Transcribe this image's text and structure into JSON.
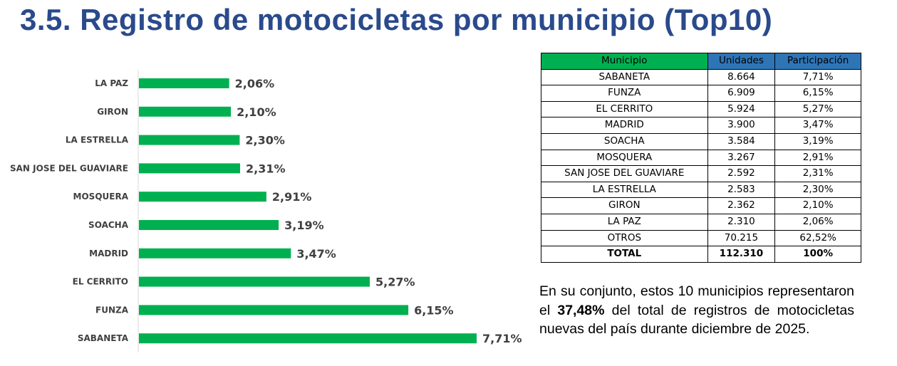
{
  "title": "3.5. Registro de motocicletas por municipio (Top10)",
  "colors": {
    "title": "#2a4a8c",
    "bar": "#00b050",
    "header_green": "#00b050",
    "header_blue": "#2e75b6"
  },
  "chart_data": {
    "type": "bar",
    "orientation": "horizontal",
    "categories": [
      "LA PAZ",
      "GIRON",
      "LA ESTRELLA",
      "SAN JOSE DEL GUAVIARE",
      "MOSQUERA",
      "SOACHA",
      "MADRID",
      "EL CERRITO",
      "FUNZA",
      "SABANETA"
    ],
    "values": [
      2.06,
      2.1,
      2.3,
      2.31,
      2.91,
      3.19,
      3.47,
      5.27,
      6.15,
      7.71
    ],
    "value_labels": [
      "2,06%",
      "2,10%",
      "2,30%",
      "2,31%",
      "2,91%",
      "3,19%",
      "3,47%",
      "5,27%",
      "6,15%",
      "7,71%"
    ],
    "title": "",
    "xlabel": "",
    "ylabel": "",
    "xlim": [
      0,
      7.71
    ],
    "grid": false,
    "legend": "none"
  },
  "table": {
    "headers": [
      "Municipio",
      "Unidades",
      "Participación"
    ],
    "rows": [
      [
        "SABANETA",
        "8.664",
        "7,71%"
      ],
      [
        "FUNZA",
        "6.909",
        "6,15%"
      ],
      [
        "EL CERRITO",
        "5.924",
        "5,27%"
      ],
      [
        "MADRID",
        "3.900",
        "3,47%"
      ],
      [
        "SOACHA",
        "3.584",
        "3,19%"
      ],
      [
        "MOSQUERA",
        "3.267",
        "2,91%"
      ],
      [
        "SAN JOSE DEL GUAVIARE",
        "2.592",
        "2,31%"
      ],
      [
        "LA ESTRELLA",
        "2.583",
        "2,30%"
      ],
      [
        "GIRON",
        "2.362",
        "2,10%"
      ],
      [
        "LA PAZ",
        "2.310",
        "2,06%"
      ],
      [
        "OTROS",
        "70.215",
        "62,52%"
      ]
    ],
    "total": [
      "TOTAL",
      "112.310",
      "100%"
    ]
  },
  "summary": {
    "before": "En su conjunto, estos 10 municipios representaron el ",
    "highlight": "37,48%",
    "after": " del total de registros de motocicletas nuevas del país durante diciembre de 2025."
  }
}
